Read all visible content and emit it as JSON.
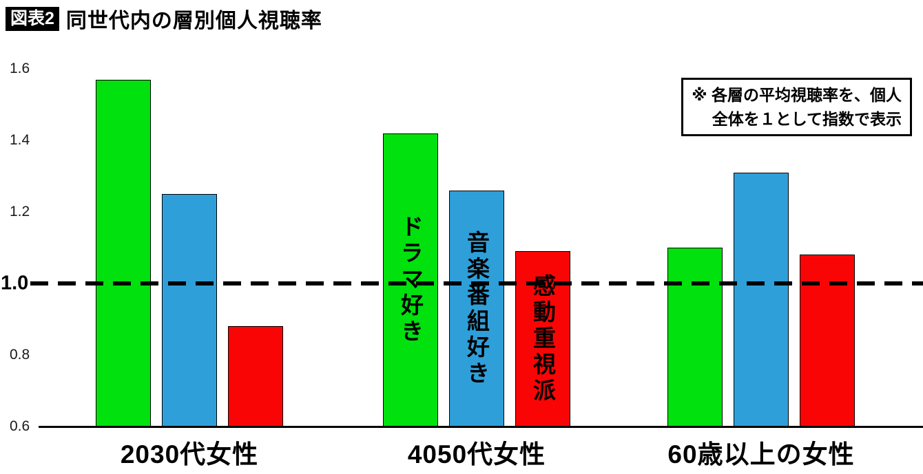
{
  "header": {
    "badge": "図表2",
    "title": "同世代内の層別個人視聴率"
  },
  "note": {
    "line1": "※ 各層の平均視聴率を、個人",
    "line2": "全体を１として指数で表示"
  },
  "chart_data": {
    "type": "bar",
    "title": "同世代内の層別個人視聴率",
    "categories": [
      "2030代女性",
      "4050代女性",
      "60歳以上の女性"
    ],
    "series": [
      {
        "name": "ドラマ好き",
        "key": "drama-fans",
        "color": "#00e10e",
        "values": [
          1.57,
          1.42,
          1.1
        ]
      },
      {
        "name": "音楽番組好き",
        "key": "music-show-fans",
        "color": "#2f9fd9",
        "values": [
          1.25,
          1.26,
          1.31
        ]
      },
      {
        "name": "感動重視派",
        "key": "emotion-focused",
        "color": "#fa0505",
        "values": [
          0.88,
          1.09,
          1.08
        ]
      }
    ],
    "ylim": [
      0.6,
      1.6
    ],
    "yticks": [
      0.6,
      0.8,
      1.0,
      1.2,
      1.4,
      1.6
    ],
    "reference_line": 1.0,
    "series_labels_in_group": "4050代女性",
    "legend_position": "in-bar",
    "grid": false
  }
}
